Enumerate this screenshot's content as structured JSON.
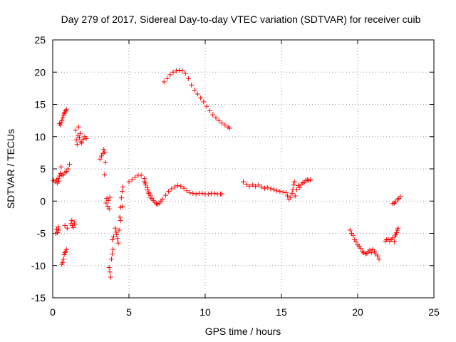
{
  "chart_data": {
    "type": "scatter",
    "title": "Day 279 of 2017, Sidereal Day-to-day VTEC variation (SDTVAR) for receiver cuib",
    "xlabel": "GPS time / hours",
    "ylabel": "SDTVAR / TECUs",
    "xlim": [
      0,
      25
    ],
    "ylim": [
      -15,
      25
    ],
    "xticks": [
      0,
      5,
      10,
      15,
      20,
      25
    ],
    "yticks": [
      -15,
      -10,
      -5,
      0,
      5,
      10,
      15,
      20,
      25
    ],
    "grid": true,
    "marker": "plus",
    "color": "#ff0000",
    "series": [
      {
        "name": "SDTVAR",
        "points": [
          [
            0.05,
            3.2
          ],
          [
            0.15,
            3.0
          ],
          [
            0.25,
            3.3
          ],
          [
            0.3,
            2.8
          ],
          [
            0.35,
            3.5
          ],
          [
            0.4,
            3.1
          ],
          [
            0.45,
            3.9
          ],
          [
            0.5,
            4.3
          ],
          [
            0.55,
            5.3
          ],
          [
            0.6,
            4.0
          ],
          [
            0.7,
            4.1
          ],
          [
            0.8,
            4.4
          ],
          [
            0.9,
            4.6
          ],
          [
            1.0,
            5.0
          ],
          [
            1.1,
            5.7
          ],
          [
            0.2,
            -5.0
          ],
          [
            0.25,
            -4.4
          ],
          [
            0.3,
            -4.9
          ],
          [
            0.35,
            -4.0
          ],
          [
            0.4,
            -4.5
          ],
          [
            0.45,
            12.0
          ],
          [
            0.5,
            11.8
          ],
          [
            0.55,
            12.2
          ],
          [
            0.6,
            12.5
          ],
          [
            0.65,
            12.9
          ],
          [
            0.7,
            13.3
          ],
          [
            0.75,
            13.6
          ],
          [
            0.8,
            13.8
          ],
          [
            0.85,
            14.0
          ],
          [
            0.9,
            14.2
          ],
          [
            0.6,
            -9.8
          ],
          [
            0.65,
            -9.5
          ],
          [
            0.7,
            -9.0
          ],
          [
            0.75,
            -8.3
          ],
          [
            0.8,
            -8.0
          ],
          [
            0.85,
            -7.8
          ],
          [
            0.9,
            -7.5
          ],
          [
            0.95,
            -4.2
          ],
          [
            0.8,
            -3.8
          ],
          [
            1.2,
            -3.5
          ],
          [
            1.25,
            -3.0
          ],
          [
            1.3,
            -3.8
          ],
          [
            1.35,
            -4.1
          ],
          [
            1.4,
            -3.2
          ],
          [
            1.45,
            -3.6
          ],
          [
            1.5,
            11.0
          ],
          [
            1.55,
            9.5
          ],
          [
            1.6,
            8.8
          ],
          [
            1.65,
            10.2
          ],
          [
            1.7,
            11.5
          ],
          [
            1.75,
            9.8
          ],
          [
            1.8,
            10.5
          ],
          [
            1.85,
            9.2
          ],
          [
            1.9,
            9.0
          ],
          [
            2.0,
            9.6
          ],
          [
            2.1,
            10.0
          ],
          [
            2.2,
            9.7
          ],
          [
            3.1,
            6.5
          ],
          [
            3.2,
            7.0
          ],
          [
            3.3,
            7.4
          ],
          [
            3.35,
            8.0
          ],
          [
            3.4,
            7.6
          ],
          [
            3.45,
            6.0
          ],
          [
            3.4,
            4.1
          ],
          [
            3.5,
            -0.3
          ],
          [
            3.55,
            0.4
          ],
          [
            3.6,
            -0.8
          ],
          [
            3.65,
            0.1
          ],
          [
            3.7,
            -1.2
          ],
          [
            3.75,
            0.6
          ],
          [
            3.7,
            -10.3
          ],
          [
            3.75,
            -11.0
          ],
          [
            3.8,
            -11.8
          ],
          [
            3.85,
            -9.0
          ],
          [
            3.9,
            -8.2
          ],
          [
            3.95,
            -7.5
          ],
          [
            3.9,
            -6.0
          ],
          [
            4.0,
            -5.5
          ],
          [
            4.1,
            -4.2
          ],
          [
            4.15,
            -4.8
          ],
          [
            4.2,
            -5.2
          ],
          [
            4.25,
            -5.8
          ],
          [
            4.3,
            -6.5
          ],
          [
            4.35,
            -4.5
          ],
          [
            4.4,
            -2.5
          ],
          [
            4.45,
            -1.0
          ],
          [
            4.5,
            0.5
          ],
          [
            4.55,
            1.5
          ],
          [
            4.6,
            2.2
          ],
          [
            4.55,
            -0.8
          ],
          [
            4.45,
            -3.0
          ],
          [
            5.0,
            3.0
          ],
          [
            5.2,
            3.3
          ],
          [
            5.4,
            3.7
          ],
          [
            5.6,
            4.0
          ],
          [
            5.8,
            4.0
          ],
          [
            6.0,
            3.5
          ],
          [
            6.1,
            2.8
          ],
          [
            6.2,
            2.1
          ],
          [
            6.3,
            1.4
          ],
          [
            6.4,
            0.9
          ],
          [
            6.5,
            0.4
          ],
          [
            6.6,
            0.1
          ],
          [
            6.7,
            -0.2
          ],
          [
            6.8,
            -0.4
          ],
          [
            6.9,
            -0.5
          ],
          [
            7.0,
            -0.3
          ],
          [
            7.1,
            0.0
          ],
          [
            6.0,
            3.0
          ],
          [
            6.1,
            2.5
          ],
          [
            6.2,
            1.8
          ],
          [
            6.3,
            1.2
          ],
          [
            6.4,
            0.6
          ],
          [
            7.2,
            0.3
          ],
          [
            7.4,
            0.9
          ],
          [
            7.6,
            1.5
          ],
          [
            7.8,
            1.9
          ],
          [
            8.0,
            2.2
          ],
          [
            8.2,
            2.4
          ],
          [
            8.4,
            2.3
          ],
          [
            8.6,
            2.0
          ],
          [
            8.8,
            1.6
          ],
          [
            9.0,
            1.3
          ],
          [
            9.2,
            1.2
          ],
          [
            9.4,
            1.1
          ],
          [
            9.6,
            1.2
          ],
          [
            9.8,
            1.2
          ],
          [
            10.0,
            1.1
          ],
          [
            10.2,
            1.1
          ],
          [
            10.4,
            1.2
          ],
          [
            10.6,
            1.2
          ],
          [
            10.8,
            1.1
          ],
          [
            11.0,
            1.1
          ],
          [
            11.1,
            1.1
          ],
          [
            7.3,
            18.5
          ],
          [
            7.5,
            19.0
          ],
          [
            7.7,
            19.6
          ],
          [
            7.9,
            20.0
          ],
          [
            8.1,
            20.2
          ],
          [
            8.3,
            20.3
          ],
          [
            8.5,
            20.2
          ],
          [
            8.7,
            19.8
          ],
          [
            8.9,
            19.0
          ],
          [
            9.1,
            18.0
          ],
          [
            9.3,
            17.2
          ],
          [
            9.5,
            16.6
          ],
          [
            9.7,
            16.0
          ],
          [
            9.9,
            15.4
          ],
          [
            10.1,
            14.7
          ],
          [
            10.3,
            14.0
          ],
          [
            10.5,
            13.4
          ],
          [
            10.7,
            12.9
          ],
          [
            10.9,
            12.5
          ],
          [
            11.1,
            12.1
          ],
          [
            11.3,
            11.8
          ],
          [
            11.5,
            11.5
          ],
          [
            11.6,
            11.3
          ],
          [
            12.5,
            3.0
          ],
          [
            12.7,
            2.6
          ],
          [
            12.9,
            2.3
          ],
          [
            13.1,
            2.5
          ],
          [
            13.3,
            2.3
          ],
          [
            13.5,
            2.5
          ],
          [
            13.7,
            2.2
          ],
          [
            13.9,
            2.0
          ],
          [
            14.1,
            2.1
          ],
          [
            14.3,
            1.9
          ],
          [
            14.5,
            1.8
          ],
          [
            14.7,
            1.6
          ],
          [
            14.9,
            1.5
          ],
          [
            15.1,
            1.4
          ],
          [
            15.3,
            1.3
          ],
          [
            15.4,
            0.8
          ],
          [
            15.5,
            0.3
          ],
          [
            15.6,
            0.6
          ],
          [
            15.7,
            1.2
          ],
          [
            15.75,
            1.8
          ],
          [
            15.8,
            2.5
          ],
          [
            15.85,
            3.0
          ],
          [
            15.9,
            0.8
          ],
          [
            16.0,
            1.8
          ],
          [
            16.1,
            2.4
          ],
          [
            16.2,
            2.1
          ],
          [
            16.3,
            2.6
          ],
          [
            16.4,
            2.8
          ],
          [
            16.5,
            2.9
          ],
          [
            16.6,
            3.2
          ],
          [
            16.7,
            3.3
          ],
          [
            16.8,
            3.2
          ],
          [
            16.9,
            3.3
          ],
          [
            19.5,
            -4.5
          ],
          [
            19.6,
            -5.0
          ],
          [
            19.7,
            -5.3
          ],
          [
            19.8,
            -6.0
          ],
          [
            19.9,
            -6.3
          ],
          [
            20.0,
            -6.8
          ],
          [
            20.1,
            -7.0
          ],
          [
            20.2,
            -7.3
          ],
          [
            20.3,
            -7.8
          ],
          [
            20.4,
            -8.0
          ],
          [
            20.5,
            -8.2
          ],
          [
            20.6,
            -8.1
          ],
          [
            20.7,
            -7.8
          ],
          [
            20.8,
            -7.6
          ],
          [
            20.9,
            -8.0
          ],
          [
            21.0,
            -7.5
          ],
          [
            21.1,
            -7.8
          ],
          [
            21.2,
            -8.2
          ],
          [
            21.3,
            -8.5
          ],
          [
            21.4,
            -9.0
          ],
          [
            21.8,
            -6.2
          ],
          [
            21.9,
            -6.0
          ],
          [
            22.0,
            -5.9
          ],
          [
            22.1,
            -6.2
          ],
          [
            22.2,
            -6.0
          ],
          [
            22.3,
            -5.7
          ],
          [
            22.4,
            -6.3
          ],
          [
            22.45,
            -5.4
          ],
          [
            22.5,
            -5.2
          ],
          [
            22.55,
            -4.9
          ],
          [
            22.6,
            -4.5
          ],
          [
            22.65,
            -4.2
          ],
          [
            22.3,
            -0.4
          ],
          [
            22.4,
            -0.3
          ],
          [
            22.5,
            -0.1
          ],
          [
            22.6,
            0.2
          ],
          [
            22.7,
            0.4
          ],
          [
            22.8,
            0.7
          ]
        ]
      }
    ]
  }
}
